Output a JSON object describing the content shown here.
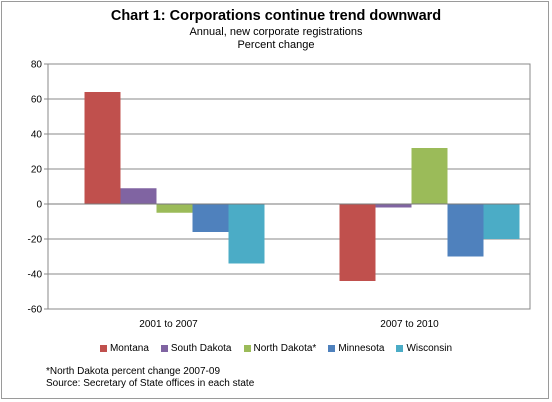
{
  "chart_data": {
    "type": "bar",
    "title": "Chart 1: Corporations continue trend downward",
    "subtitle": [
      "Annual, new corporate registrations",
      "Percent change"
    ],
    "categories": [
      "2001 to 2007",
      "2007 to 2010"
    ],
    "series": [
      {
        "name": "Montana",
        "color": "#c0504d",
        "values": [
          64,
          -44
        ]
      },
      {
        "name": "South Dakota",
        "color": "#8064a2",
        "values": [
          9,
          -2
        ]
      },
      {
        "name": "North Dakota*",
        "color": "#9bbb59",
        "values": [
          -5,
          32
        ]
      },
      {
        "name": "Minnesota",
        "color": "#4f81bd",
        "values": [
          -16,
          -30
        ]
      },
      {
        "name": "Wisconsin",
        "color": "#4bacc6",
        "values": [
          -34,
          -20
        ]
      }
    ],
    "ylim": [
      -60,
      80
    ],
    "yticks": [
      80,
      60,
      40,
      20,
      0,
      -20,
      -40,
      -60
    ],
    "grid": true,
    "legend_position": "bottom",
    "notes": [
      "*North Dakota percent change 2007-09",
      "Source: Secretary of State offices in each state"
    ]
  }
}
